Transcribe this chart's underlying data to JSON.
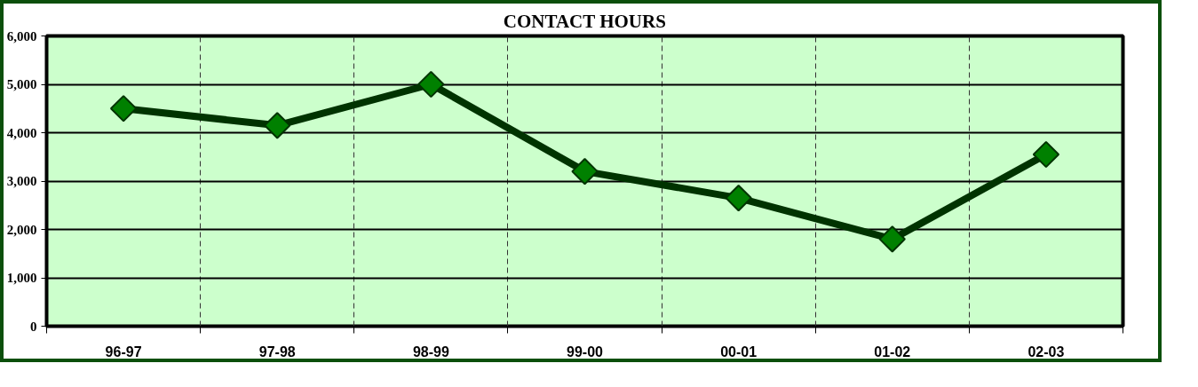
{
  "chart_data": {
    "type": "line",
    "title": "CONTACT HOURS",
    "categories": [
      "96-97",
      "97-98",
      "98-99",
      "99-00",
      "00-01",
      "01-02",
      "02-03"
    ],
    "series": [
      {
        "color": "#003300",
        "values": [
          4500,
          4150,
          5000,
          3200,
          2650,
          1800,
          3550
        ]
      }
    ],
    "ylim": [
      0,
      6000
    ],
    "yticks": [
      {
        "value": 0,
        "label": "0"
      },
      {
        "value": 1000,
        "label": "1,000"
      },
      {
        "value": 2000,
        "label": "2,000"
      },
      {
        "value": 3000,
        "label": "3,000"
      },
      {
        "value": 4000,
        "label": "4,000"
      },
      {
        "value": 5000,
        "label": "5,000"
      },
      {
        "value": 6000,
        "label": "6,000"
      }
    ],
    "grid": true,
    "marker": "diamond",
    "line_style": "solid"
  }
}
